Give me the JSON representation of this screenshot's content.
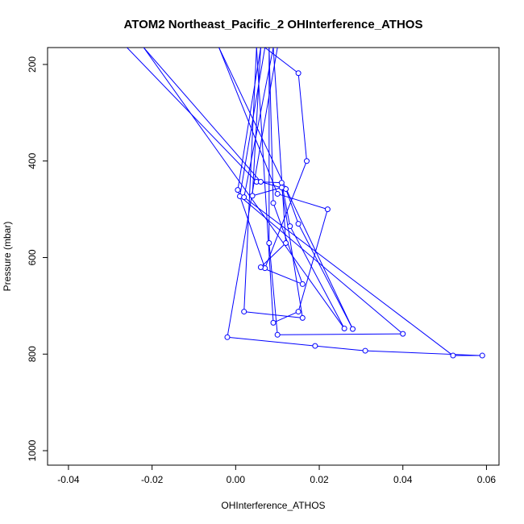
{
  "chart_data": {
    "type": "line",
    "title": "ATOM2 Northeast_Pacific_2 OHInterference_ATHOS",
    "xlabel": "OHInterference_ATHOS",
    "ylabel": "Pressure (mbar)",
    "xlim": [
      -0.045,
      0.063
    ],
    "ylim": [
      1030,
      165
    ],
    "y_reversed": true,
    "x_ticks": [
      -0.04,
      -0.02,
      0.0,
      0.02,
      0.04,
      0.06
    ],
    "x_tick_labels": [
      "-0.04",
      "-0.02",
      "0.00",
      "0.02",
      "0.04",
      "0.06"
    ],
    "y_ticks": [
      200,
      400,
      600,
      800,
      1000
    ],
    "y_tick_labels": [
      "200",
      "400",
      "600",
      "800",
      "1000"
    ],
    "grid": false,
    "series": [
      {
        "color": "#0000ff",
        "marker": "open-circle",
        "points": [
          [
            -0.026,
            165
          ],
          [
            0.005,
            443
          ],
          [
            0.011,
            445
          ],
          [
            0.013,
            535
          ],
          [
            0.026,
            747
          ],
          [
            -0.022,
            165
          ],
          [
            0.006,
            443
          ],
          [
            0.012,
            458
          ],
          [
            0.015,
            530
          ],
          [
            0.028,
            748
          ],
          [
            -0.004,
            165
          ],
          [
            0.01,
            468
          ],
          [
            0.022,
            500
          ],
          [
            0.015,
            712
          ],
          [
            0.009,
            735
          ],
          [
            0.005,
            165
          ],
          [
            0.002,
            712
          ],
          [
            0.016,
            725
          ],
          [
            0.011,
            455
          ],
          [
            0.004,
            472
          ],
          [
            0.006,
            165
          ],
          [
            0.0005,
            460
          ],
          [
            0.007,
            622
          ],
          [
            0.017,
            400
          ],
          [
            0.015,
            218
          ],
          [
            0.007,
            165
          ],
          [
            0.001,
            473
          ],
          [
            0.04,
            758
          ],
          [
            0.01,
            760
          ],
          [
            0.008,
            570
          ],
          [
            0.008,
            165
          ],
          [
            0.009,
            487
          ],
          [
            0.016,
            655
          ],
          [
            0.006,
            620
          ],
          [
            0.012,
            570
          ],
          [
            0.009,
            165
          ],
          [
            0.002,
            475
          ],
          [
            0.052,
            803
          ],
          [
            0.059,
            803
          ],
          [
            0.031,
            793
          ],
          [
            0.019,
            783
          ],
          [
            -0.002,
            765
          ],
          [
            0.01,
            165
          ]
        ]
      }
    ]
  }
}
